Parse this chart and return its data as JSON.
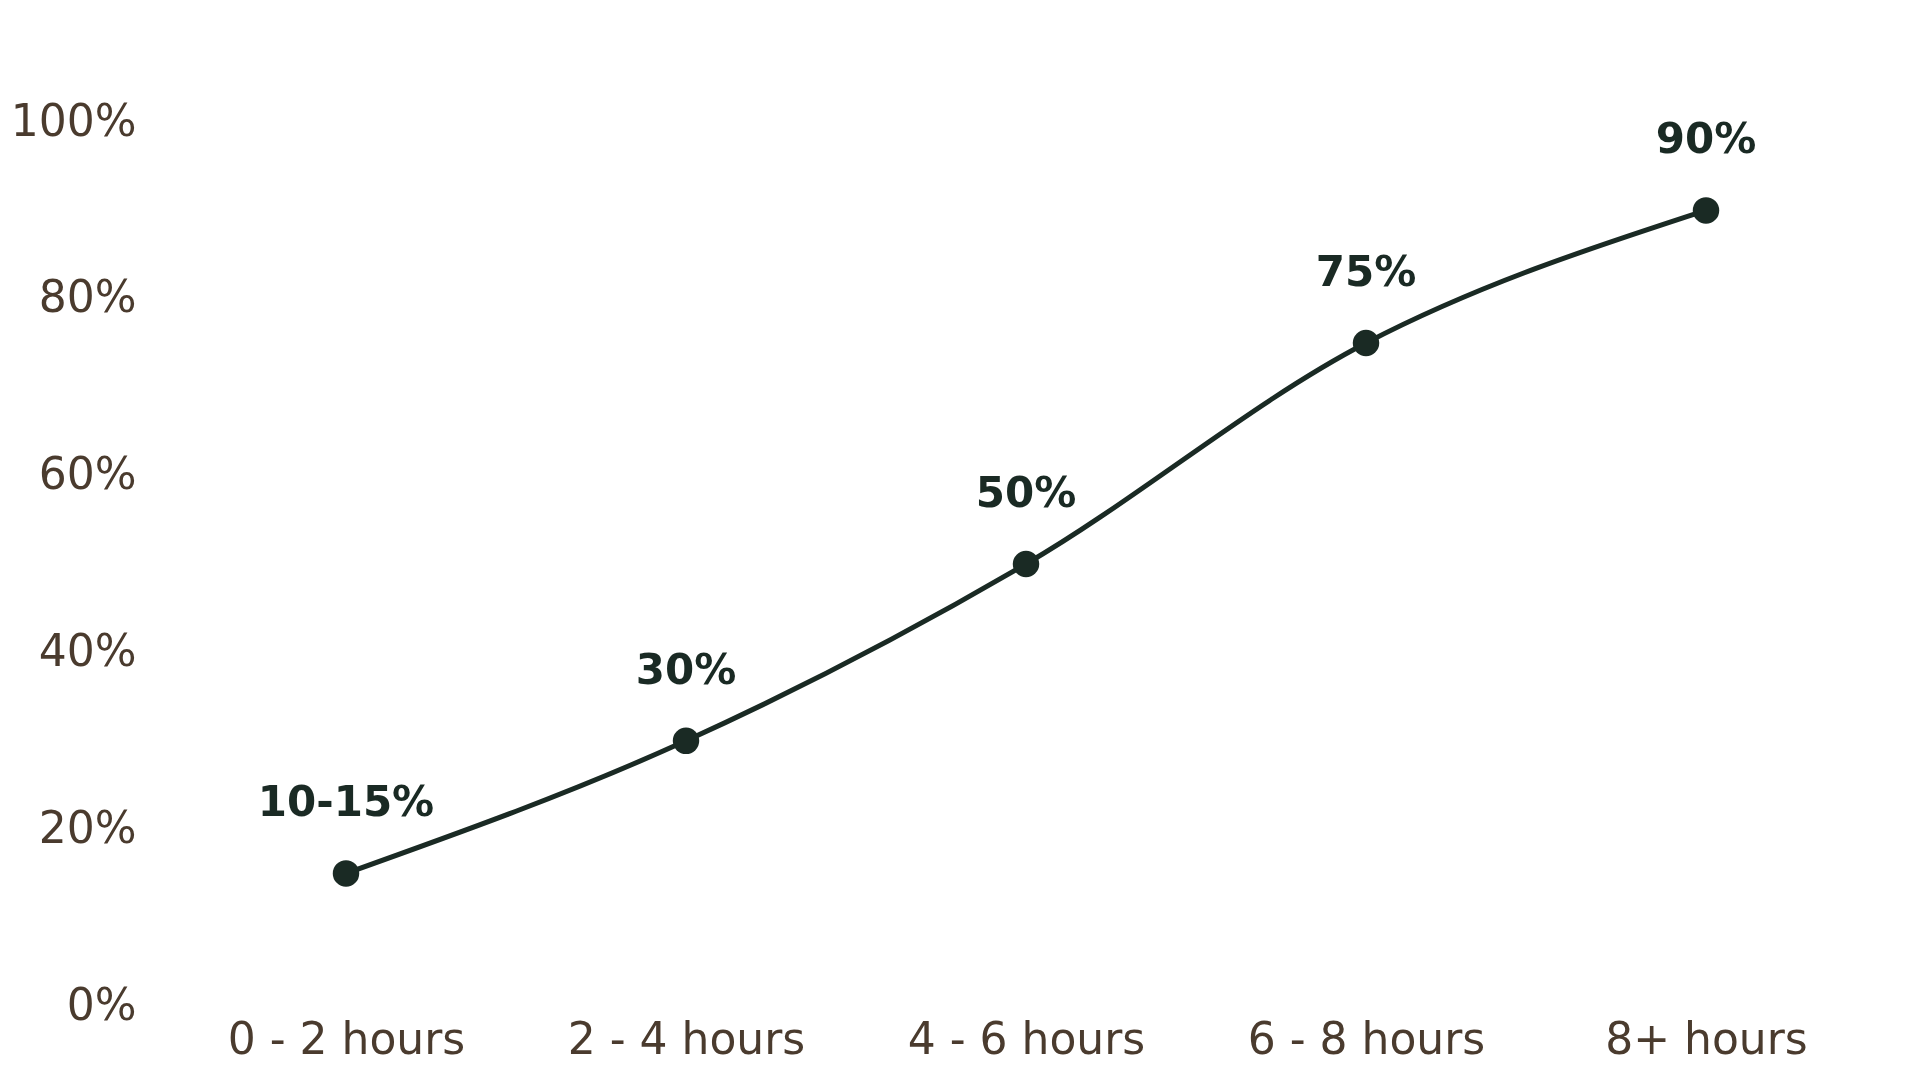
{
  "chart_data": {
    "type": "line",
    "categories": [
      "0 - 2 hours",
      "2 - 4 hours",
      "4 - 6 hours",
      "6 - 8 hours",
      "8+ hours"
    ],
    "series": [
      {
        "color": "#1a2a24",
        "values": [
          15,
          30,
          50,
          75,
          90
        ],
        "value_labels": [
          null,
          "30%",
          "50%",
          "75%",
          "90%"
        ]
      }
    ],
    "annotations": [
      {
        "text": "10-15%",
        "x": "0 - 2 hours",
        "y": 15
      }
    ],
    "ylim": [
      0,
      100
    ],
    "yticks": [
      {
        "value": 0,
        "label": "0%"
      },
      {
        "value": 20,
        "label": "20%"
      },
      {
        "value": 40,
        "label": "40%"
      },
      {
        "value": 60,
        "label": "60%"
      },
      {
        "value": 80,
        "label": "80%"
      },
      {
        "value": 100,
        "label": "100%"
      }
    ],
    "marker": "circle",
    "line_style": "solid",
    "grid": false
  }
}
